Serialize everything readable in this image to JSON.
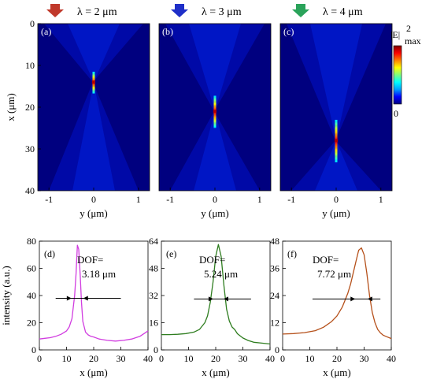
{
  "header": {
    "labels": [
      "λ = 2 μm",
      "λ = 3 μm",
      "λ = 4 μm"
    ],
    "arrow_colors": [
      "#c0392b",
      "#1f2fc8",
      "#2aa35a"
    ]
  },
  "colorbar": {
    "max_label": "|E|",
    "max_sup": "2",
    "max_sub": "max",
    "min_label": "0",
    "colors": [
      "#00007f",
      "#0000ff",
      "#00a0ff",
      "#00ffff",
      "#7fff7f",
      "#ffff00",
      "#ff8000",
      "#ff0000",
      "#7f0000"
    ]
  },
  "maps": {
    "panels": [
      "(a)",
      "(b)",
      "(c)"
    ],
    "xlabel": "y (μm)",
    "ylabel": "x (μm)",
    "xticks": [
      "-1",
      "0",
      "1"
    ],
    "yticks": [
      "0",
      "10",
      "20",
      "30",
      "40"
    ],
    "focus_x_um": [
      14,
      21,
      28
    ]
  },
  "chart_data": [
    {
      "type": "line",
      "panel": "(d)",
      "xlabel": "x (μm)",
      "ylabel": "intensity (a.u.)",
      "xlim": [
        0,
        40
      ],
      "ylim": [
        0,
        80
      ],
      "xticks": [
        "0",
        "10",
        "20",
        "30",
        "40"
      ],
      "yticks": [
        "0",
        "20",
        "40",
        "60",
        "80"
      ],
      "color": "#d13de0",
      "annotation": [
        "DOF=",
        "3.18 μm"
      ],
      "arrow_y": 38,
      "arrow_x": [
        6,
        30
      ],
      "x": [
        0,
        2,
        4,
        6,
        8,
        10,
        11,
        12,
        13,
        13.5,
        14,
        14.5,
        15,
        15.5,
        16,
        17,
        18,
        19,
        20,
        22,
        25,
        28,
        31,
        34,
        37,
        40
      ],
      "y": [
        8,
        8.5,
        9,
        10,
        11.5,
        14,
        17,
        23,
        40,
        56,
        77,
        74,
        56,
        35,
        21,
        13,
        11,
        10,
        9.5,
        8,
        7,
        6.5,
        7,
        8,
        10,
        14
      ]
    },
    {
      "type": "line",
      "panel": "(e)",
      "xlabel": "x (μm)",
      "ylabel": "",
      "xlim": [
        0,
        40
      ],
      "ylim": [
        0,
        64
      ],
      "xticks": [
        "0",
        "10",
        "20",
        "30",
        "40"
      ],
      "yticks": [
        "0",
        "16",
        "32",
        "48",
        "64"
      ],
      "color": "#2e7d1f",
      "annotation": [
        "DOF=",
        "5.24 μm"
      ],
      "arrow_y": 30,
      "arrow_x": [
        12,
        33
      ],
      "x": [
        0,
        3,
        6,
        9,
        12,
        14,
        16,
        17,
        18,
        19,
        20,
        21,
        22,
        23,
        24,
        25,
        26,
        27,
        28,
        30,
        32,
        34,
        37,
        40
      ],
      "y": [
        9,
        9,
        9.2,
        9.6,
        10.5,
        12,
        16,
        20,
        28,
        40,
        55,
        62,
        55,
        38,
        24,
        17,
        13.5,
        12,
        9.5,
        7,
        5.5,
        4.5,
        4,
        3.5
      ]
    },
    {
      "type": "line",
      "panel": "(f)",
      "xlabel": "x (μm)",
      "ylabel": "",
      "xlim": [
        0,
        40
      ],
      "ylim": [
        0,
        48
      ],
      "xticks": [
        "0",
        "10",
        "20",
        "30",
        "40"
      ],
      "yticks": [
        "0",
        "12",
        "24",
        "36",
        "48"
      ],
      "color": "#b5501a",
      "annotation": [
        "DOF=",
        "7.72 μm"
      ],
      "arrow_y": 22.5,
      "arrow_x": [
        11,
        36
      ],
      "x": [
        0,
        4,
        8,
        12,
        15,
        18,
        20,
        22,
        24,
        25,
        26,
        27,
        28,
        29,
        30,
        31,
        32,
        33,
        34,
        35,
        36,
        37,
        38,
        40
      ],
      "y": [
        7,
        7.2,
        7.6,
        8.5,
        10,
        12.5,
        15,
        19,
        25,
        29,
        34,
        39,
        44,
        45,
        42,
        34,
        24,
        16.5,
        12,
        9,
        7.5,
        6.5,
        6,
        5
      ]
    }
  ]
}
